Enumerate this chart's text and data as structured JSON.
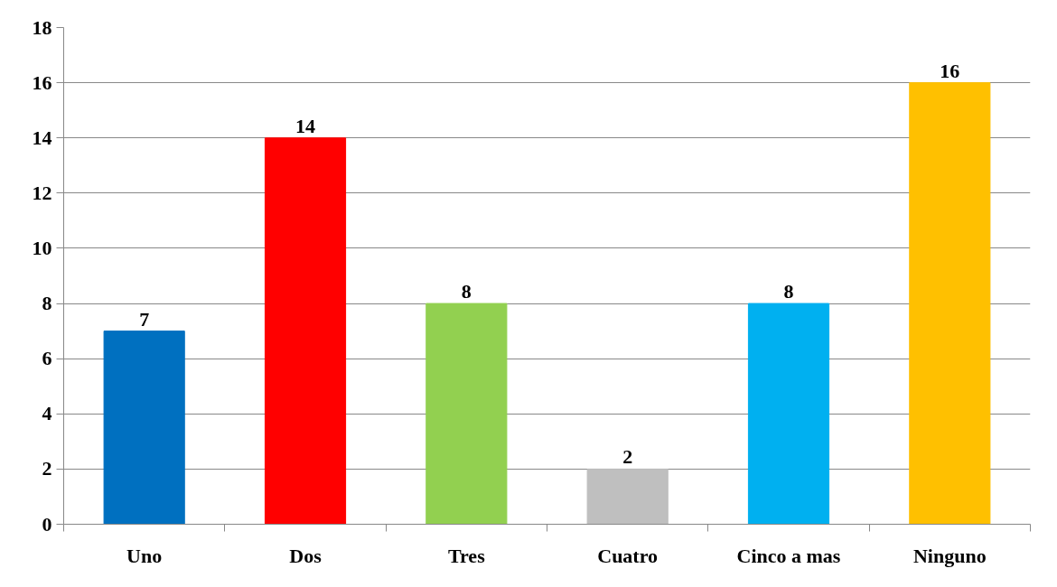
{
  "chart_data": {
    "type": "bar",
    "categories": [
      "Uno",
      "Dos",
      "Tres",
      "Cuatro",
      "Cinco a mas",
      "Ninguno"
    ],
    "values": [
      7,
      14,
      8,
      2,
      8,
      16
    ],
    "colors": [
      "#0070c0",
      "#ff0000",
      "#92d050",
      "#bfbfbf",
      "#00b0f0",
      "#ffc000"
    ],
    "ylim": [
      0,
      18
    ],
    "yticks": [
      0,
      2,
      4,
      6,
      8,
      10,
      12,
      14,
      16,
      18
    ],
    "grid": "y",
    "data_labels": true
  }
}
